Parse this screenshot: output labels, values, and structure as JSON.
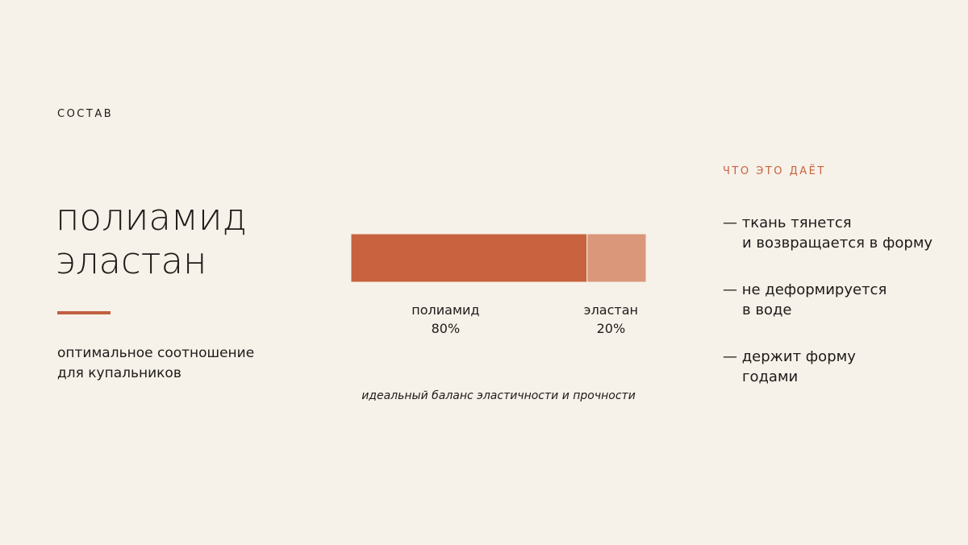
{
  "section_label": "СОСТАВ",
  "heading": [
    "полиамид",
    "эластан"
  ],
  "description": [
    "оптимальное соотношение",
    "для купальников"
  ],
  "chart_data": {
    "type": "stacked-bar",
    "series": [
      {
        "name": "полиамид",
        "color": "#c8623f",
        "values": [
          80
        ],
        "value_labels": [
          "80%"
        ]
      },
      {
        "name": "эластан",
        "color": "#da977a",
        "values": [
          20
        ],
        "value_labels": [
          "20%"
        ]
      }
    ],
    "caption": "идеальный баланс эластичности и прочности"
  },
  "benefits": {
    "title": "ЧТО ЭТО ДАЁТ",
    "items": [
      [
        "— ткань тянется",
        "и возвращается в форму"
      ],
      [
        "— не деформируется",
        "в воде"
      ],
      [
        "— держит форму",
        "годами"
      ]
    ]
  }
}
